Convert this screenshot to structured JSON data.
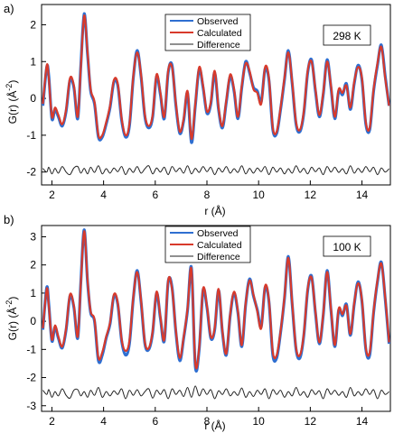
{
  "chart_data": [
    {
      "type": "line",
      "panel_label": "a)",
      "annotation": "298 K",
      "xlabel": "r (Å)",
      "ylabel": "G(r) (Å",
      "ylabel_sup": "-2",
      "ylabel_close": ")",
      "xlim": [
        1.6,
        15.1
      ],
      "ylim": [
        -2.35,
        2.55
      ],
      "x_ticks": [
        2,
        4,
        6,
        8,
        10,
        12,
        14
      ],
      "y_ticks": [
        -2,
        -1,
        0,
        1,
        2
      ],
      "legend": {
        "position": "top-center",
        "entries": [
          "Observed",
          "Calculated",
          "Difference"
        ]
      },
      "difference_offset": -1.95,
      "series": [
        {
          "name": "Observed",
          "color": "#2f6fd1"
        },
        {
          "name": "Calculated",
          "color": "#d83a2b"
        },
        {
          "name": "Difference",
          "color": "#222222"
        }
      ],
      "x": [
        1.65,
        1.8,
        1.88,
        2.0,
        2.12,
        2.25,
        2.4,
        2.55,
        2.7,
        2.85,
        3.0,
        3.12,
        3.25,
        3.38,
        3.5,
        3.65,
        3.8,
        3.95,
        4.1,
        4.25,
        4.4,
        4.55,
        4.7,
        4.85,
        5.0,
        5.15,
        5.3,
        5.45,
        5.6,
        5.75,
        5.9,
        6.05,
        6.2,
        6.35,
        6.5,
        6.65,
        6.8,
        6.95,
        7.1,
        7.25,
        7.4,
        7.55,
        7.7,
        7.85,
        8.0,
        8.15,
        8.3,
        8.45,
        8.6,
        8.75,
        8.9,
        9.05,
        9.2,
        9.35,
        9.5,
        9.65,
        9.8,
        9.95,
        10.1,
        10.25,
        10.4,
        10.55,
        10.7,
        10.85,
        11.0,
        11.15,
        11.3,
        11.45,
        11.6,
        11.75,
        11.9,
        12.05,
        12.2,
        12.35,
        12.5,
        12.65,
        12.8,
        12.95,
        13.1,
        13.25,
        13.4,
        13.55,
        13.7,
        13.85,
        14.0,
        14.15,
        14.3,
        14.45,
        14.6,
        14.75,
        14.9,
        15.05
      ],
      "observed": [
        -0.2,
        0.85,
        0.6,
        -0.55,
        -0.3,
        -0.5,
        -0.75,
        -0.35,
        0.5,
        0.3,
        -0.55,
        0.9,
        2.3,
        1.2,
        0.2,
        -0.15,
        -1.05,
        -1.05,
        -0.7,
        -0.25,
        0.45,
        0.35,
        -0.6,
        -1.05,
        -0.75,
        0.55,
        1.3,
        0.6,
        -0.5,
        -0.8,
        -0.5,
        0.6,
        0.1,
        -0.55,
        0.7,
        0.9,
        -0.2,
        -0.95,
        -0.6,
        0.15,
        -1.2,
        -0.2,
        0.8,
        0.3,
        -0.4,
        -0.15,
        0.7,
        -0.3,
        -0.8,
        -0.1,
        0.6,
        0.2,
        -0.55,
        0.3,
        1.0,
        0.7,
        0.3,
        0.2,
        -0.1,
        0.8,
        0.5,
        -0.85,
        -0.95,
        -0.3,
        0.5,
        1.3,
        0.4,
        -0.7,
        -0.9,
        -0.4,
        0.7,
        1.05,
        0.2,
        -0.5,
        0.1,
        1.05,
        0.3,
        -0.55,
        0.2,
        0.1,
        0.4,
        -0.3,
        0.4,
        0.9,
        0.5,
        -0.7,
        -0.85,
        0.2,
        0.9,
        1.45,
        0.6,
        -0.2
      ],
      "calculated": [
        -0.15,
        0.9,
        0.55,
        -0.5,
        -0.25,
        -0.45,
        -0.7,
        -0.3,
        0.55,
        0.35,
        -0.5,
        0.85,
        2.25,
        1.25,
        0.25,
        -0.1,
        -1.0,
        -1.0,
        -0.65,
        -0.2,
        0.5,
        0.4,
        -0.55,
        -1.0,
        -0.7,
        0.6,
        1.25,
        0.65,
        -0.45,
        -0.75,
        -0.45,
        0.65,
        0.15,
        -0.5,
        0.75,
        0.85,
        -0.15,
        -0.9,
        -0.55,
        0.2,
        -1.1,
        -0.15,
        0.85,
        0.35,
        -0.35,
        -0.1,
        0.75,
        -0.25,
        -0.75,
        -0.05,
        0.65,
        0.25,
        -0.5,
        0.35,
        0.95,
        0.75,
        0.25,
        0.15,
        -0.15,
        0.85,
        0.55,
        -0.8,
        -0.9,
        -0.25,
        0.55,
        1.25,
        0.45,
        -0.65,
        -0.85,
        -0.35,
        0.75,
        1.0,
        0.25,
        -0.45,
        0.15,
        1.0,
        0.35,
        -0.5,
        0.25,
        0.15,
        0.35,
        -0.25,
        0.45,
        0.85,
        0.55,
        -0.65,
        -0.8,
        0.25,
        0.95,
        1.4,
        0.55,
        -0.2
      ],
      "difference": [
        0.05,
        -0.05,
        0.08,
        -0.1,
        0.05,
        -0.08,
        0.1,
        -0.05,
        -0.12,
        0.06,
        0.1,
        -0.08,
        0.05,
        -0.1,
        0.08,
        -0.06,
        0.12,
        -0.1,
        0.04,
        -0.08,
        0.06,
        -0.04,
        0.1,
        -0.12,
        0.05,
        -0.06,
        0.1,
        -0.08,
        0.04,
        0.12,
        -0.1,
        0.06,
        -0.05,
        0.08,
        -0.12,
        0.1,
        -0.04,
        0.06,
        -0.08,
        0.12,
        -0.1,
        0.05,
        -0.06,
        0.1,
        -0.04,
        0.08,
        -0.12,
        0.06,
        -0.05,
        0.1,
        -0.08,
        0.04,
        -0.06,
        0.12,
        -0.1,
        0.05,
        -0.08,
        0.06,
        -0.04,
        0.1,
        -0.12,
        0.08,
        -0.05,
        0.06,
        -0.1,
        0.04,
        -0.08,
        0.12,
        -0.06,
        0.05,
        -0.1,
        0.08,
        -0.04,
        0.06,
        -0.12,
        0.1,
        -0.05,
        0.08,
        -0.06,
        0.04,
        -0.1,
        0.12,
        -0.08,
        0.05,
        -0.06,
        0.1,
        -0.04,
        0.08,
        -0.12,
        0.06,
        -0.05,
        0.04
      ]
    },
    {
      "type": "line",
      "panel_label": "b)",
      "annotation": "100 K",
      "xlabel": "r (Å)",
      "ylabel": "G(r) (Å",
      "ylabel_sup": "-2",
      "ylabel_close": ")",
      "xlim": [
        1.6,
        15.1
      ],
      "ylim": [
        -3.2,
        3.4
      ],
      "x_ticks": [
        2,
        4,
        6,
        8,
        10,
        12,
        14
      ],
      "y_ticks": [
        -3,
        -2,
        -1,
        0,
        1,
        2,
        3
      ],
      "legend": {
        "position": "top-center",
        "entries": [
          "Observed",
          "Calculated",
          "Difference"
        ]
      },
      "difference_offset": -2.55,
      "series": [
        {
          "name": "Observed",
          "color": "#2f6fd1"
        },
        {
          "name": "Calculated",
          "color": "#d83a2b"
        },
        {
          "name": "Difference",
          "color": "#222222"
        }
      ],
      "x": [
        1.65,
        1.8,
        1.88,
        2.0,
        2.12,
        2.25,
        2.4,
        2.55,
        2.7,
        2.85,
        3.0,
        3.12,
        3.25,
        3.38,
        3.5,
        3.65,
        3.8,
        3.95,
        4.1,
        4.25,
        4.4,
        4.55,
        4.7,
        4.85,
        5.0,
        5.15,
        5.3,
        5.45,
        5.6,
        5.75,
        5.9,
        6.05,
        6.2,
        6.35,
        6.5,
        6.65,
        6.8,
        6.95,
        7.1,
        7.25,
        7.4,
        7.55,
        7.7,
        7.85,
        8.0,
        8.15,
        8.3,
        8.45,
        8.6,
        8.75,
        8.9,
        9.05,
        9.2,
        9.35,
        9.5,
        9.65,
        9.8,
        9.95,
        10.1,
        10.25,
        10.4,
        10.55,
        10.7,
        10.85,
        11.0,
        11.15,
        11.3,
        11.45,
        11.6,
        11.75,
        11.9,
        12.05,
        12.2,
        12.35,
        12.5,
        12.65,
        12.8,
        12.95,
        13.1,
        13.25,
        13.4,
        13.55,
        13.7,
        13.85,
        14.0,
        14.15,
        14.3,
        14.45,
        14.6,
        14.75,
        14.9,
        15.05
      ],
      "observed": [
        -0.3,
        1.2,
        0.6,
        -0.7,
        -0.2,
        -0.6,
        -0.95,
        -0.3,
        0.9,
        0.5,
        -0.6,
        1.4,
        3.25,
        1.4,
        0.3,
        0.0,
        -1.4,
        -1.2,
        -0.6,
        -0.1,
        0.9,
        0.6,
        -0.7,
        -1.2,
        -0.8,
        0.8,
        1.8,
        0.7,
        -0.8,
        -1.0,
        -0.4,
        1.0,
        0.1,
        -0.7,
        1.4,
        1.2,
        -0.4,
        -1.4,
        -0.6,
        0.4,
        1.9,
        -1.6,
        -1.0,
        1.1,
        0.5,
        -0.6,
        -0.3,
        1.1,
        -0.4,
        -1.2,
        0.2,
        1.0,
        0.3,
        -0.9,
        0.6,
        1.5,
        0.9,
        0.4,
        -0.2,
        1.2,
        0.7,
        -1.2,
        -1.3,
        -0.4,
        0.8,
        2.3,
        0.6,
        -1.0,
        -1.3,
        -0.5,
        1.1,
        1.6,
        0.3,
        -0.8,
        0.2,
        1.8,
        0.4,
        -0.9,
        0.4,
        0.2,
        0.6,
        -0.5,
        0.6,
        1.4,
        0.7,
        -1.0,
        -1.2,
        0.3,
        1.4,
        2.1,
        0.8,
        -0.8
      ],
      "calculated": [
        -0.25,
        1.15,
        0.55,
        -0.65,
        -0.15,
        -0.55,
        -0.9,
        -0.25,
        0.95,
        0.55,
        -0.55,
        1.35,
        3.2,
        1.45,
        0.35,
        0.05,
        -1.3,
        -1.1,
        -0.55,
        -0.05,
        0.95,
        0.65,
        -0.65,
        -1.05,
        -0.7,
        0.85,
        1.75,
        0.75,
        -0.75,
        -0.95,
        -0.35,
        1.05,
        0.15,
        -0.65,
        1.45,
        1.15,
        -0.35,
        -1.3,
        -0.55,
        0.45,
        1.85,
        -1.5,
        -0.95,
        1.15,
        0.55,
        -0.55,
        -0.25,
        1.15,
        -0.35,
        -1.15,
        0.25,
        1.05,
        0.35,
        -0.85,
        0.65,
        1.45,
        0.95,
        0.35,
        -0.25,
        1.25,
        0.75,
        -1.1,
        -1.2,
        -0.35,
        0.85,
        2.25,
        0.65,
        -0.95,
        -1.2,
        -0.45,
        1.15,
        1.55,
        0.35,
        -0.75,
        0.25,
        1.75,
        0.45,
        -0.85,
        0.45,
        0.25,
        0.55,
        -0.45,
        0.65,
        1.35,
        0.75,
        -0.95,
        -1.1,
        0.35,
        1.45,
        2.05,
        0.85,
        -0.75
      ],
      "difference": [
        0.1,
        -0.05,
        0.12,
        -0.15,
        0.05,
        -0.1,
        0.15,
        -0.08,
        -0.18,
        0.1,
        0.12,
        -0.1,
        0.05,
        -0.15,
        0.1,
        -0.08,
        0.2,
        -0.15,
        0.05,
        -0.1,
        0.08,
        -0.05,
        0.15,
        -0.2,
        0.1,
        -0.08,
        0.12,
        -0.1,
        0.05,
        0.15,
        -0.18,
        0.1,
        -0.05,
        0.12,
        -0.2,
        0.15,
        -0.05,
        0.1,
        -0.12,
        0.2,
        -0.15,
        0.25,
        -0.1,
        0.15,
        -0.05,
        0.12,
        -0.2,
        0.08,
        -0.05,
        0.15,
        -0.1,
        0.05,
        -0.08,
        0.18,
        -0.15,
        0.05,
        -0.12,
        0.1,
        -0.05,
        0.15,
        -0.2,
        0.12,
        -0.05,
        0.1,
        -0.15,
        0.05,
        -0.1,
        0.2,
        -0.08,
        0.05,
        -0.15,
        0.12,
        -0.05,
        0.08,
        -0.2,
        0.15,
        -0.05,
        0.1,
        -0.08,
        0.05,
        -0.15,
        0.2,
        -0.1,
        0.05,
        -0.08,
        0.15,
        -0.05,
        0.12,
        -0.2,
        0.1,
        -0.05,
        0.05
      ]
    }
  ]
}
